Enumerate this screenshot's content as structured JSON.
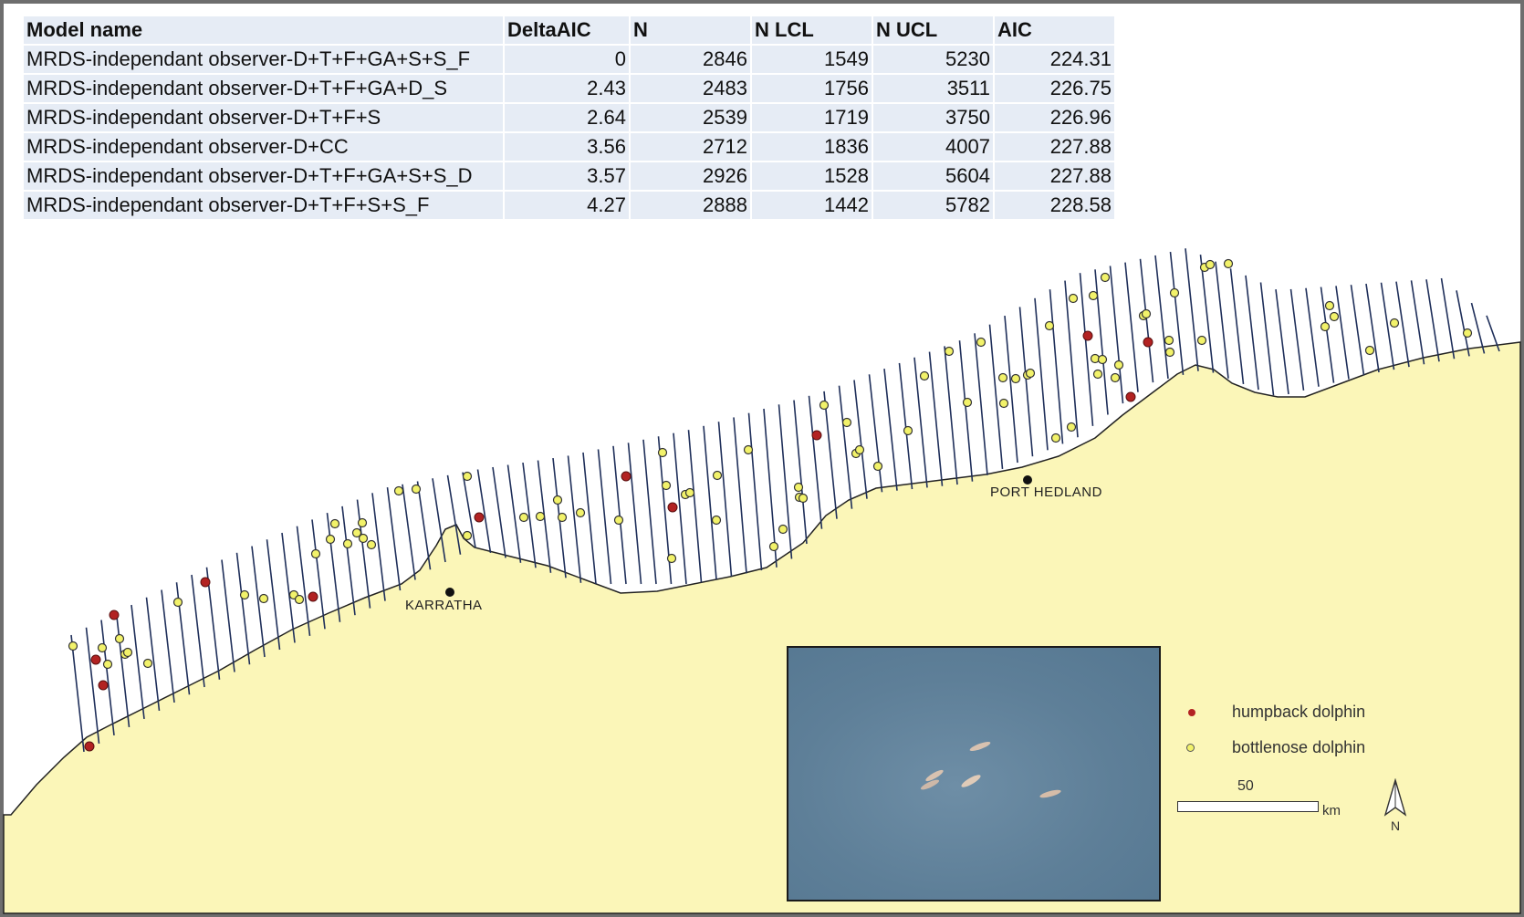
{
  "table": {
    "headers": [
      "Model name",
      "DeltaAIC",
      "N",
      "N LCL",
      "N UCL",
      "AIC"
    ],
    "rows": [
      [
        "MRDS-independant observer-D+T+F+GA+S+S_F",
        "0",
        "2846",
        "1549",
        "5230",
        "224.31"
      ],
      [
        "MRDS-independant observer-D+T+F+GA+D_S",
        "2.43",
        "2483",
        "1756",
        "3511",
        "226.75"
      ],
      [
        "MRDS-independant observer-D+T+F+S",
        "2.64",
        "2539",
        "1719",
        "3750",
        "226.96"
      ],
      [
        "MRDS-independant observer-D+CC",
        "3.56",
        "2712",
        "1836",
        "4007",
        "227.88"
      ],
      [
        "MRDS-independant observer-D+T+F+GA+S+S_D",
        "3.57",
        "2926",
        "1528",
        "5604",
        "227.88"
      ],
      [
        "MRDS-independant observer-D+T+F+S+S_F",
        "4.27",
        "2888",
        "1442",
        "5782",
        "228.58"
      ]
    ]
  },
  "map": {
    "places": {
      "karratha": "KARRATHA",
      "port_hedland": "PORT HEDLAND"
    },
    "legend": {
      "humpback": "humpback dolphin",
      "bottlenose": "bottlenose dolphin"
    },
    "scale": {
      "value": "50",
      "unit": "km"
    },
    "north": "N",
    "colors": {
      "land": "#fbf6b8",
      "sea": "#ffffff",
      "transect": "#1f2f5a",
      "humpback": "#b22222",
      "bottlenose": "#f2f26a",
      "inset_water": "#5e7f98"
    },
    "icons": {
      "humpback_marker": "red-dot",
      "bottlenose_marker": "yellow-dot",
      "north_arrow": "north-arrow-icon"
    }
  }
}
